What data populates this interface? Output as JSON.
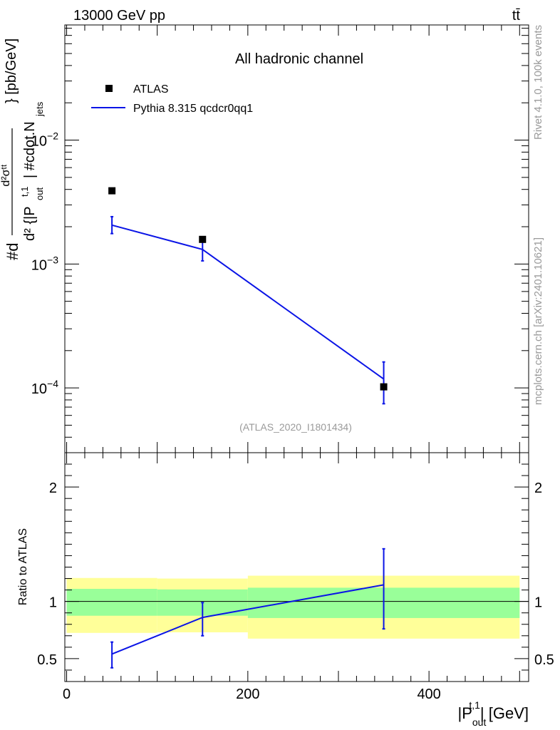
{
  "header": {
    "energy_label": "13000 GeV pp",
    "process_label": "tt̄",
    "channel_title": "All hadronic channel",
    "analysis_id": "(ATLAS_2020_I1801434)"
  },
  "side_labels": {
    "rivet": "Rivet 4.1.0,  100k events",
    "mcplots": "mcplots.cern.ch [arXiv:2401.10621]"
  },
  "legend": {
    "data_label": "ATLAS",
    "mc_label": "Pythia 8.315 qcdcr0qq1"
  },
  "colors": {
    "mc_line": "#0a14e6",
    "band_inner": "#99ff99",
    "band_outer": "#ffff99",
    "data_marker": "#000000"
  },
  "axes": {
    "y_top": {
      "pieces": [
        "#d",
        "d²σᵗᵗ",
        "d² {|P",
        "out",
        "t,1",
        "| #cdot.N",
        "jets",
        "} [pb/GeV]"
      ]
    },
    "y_bottom": {
      "label": "Ratio to ATLAS"
    },
    "x": {
      "pre": "|P",
      "sub": "out",
      "sup": "t,1",
      "post": "| [GeV]"
    }
  },
  "chart_data": [
    {
      "type": "scatter",
      "title": "All hadronic channel",
      "xlabel": "|P_out^{t,1}| [GeV]",
      "ylabel": "d²σ / d²{|P_out^{t,1}| · N_jets} [pb/GeV]",
      "yscale": "log",
      "xlim": [
        -2,
        510
      ],
      "ylim": [
        3e-05,
        0.085
      ],
      "y_ticks": [
        {
          "value": 0.0001,
          "base": "10",
          "exp": "−4"
        },
        {
          "value": 0.001,
          "base": "10",
          "exp": "−3"
        },
        {
          "value": 0.01,
          "base": "10",
          "exp": "−2"
        }
      ],
      "series": [
        {
          "name": "ATLAS",
          "style": "markers",
          "x": [
            50,
            150,
            350
          ],
          "y": [
            0.0039,
            0.00158,
            0.000102
          ]
        },
        {
          "name": "Pythia 8.315 qcdcr0qq1",
          "style": "line",
          "x": [
            50,
            150,
            350
          ],
          "y": [
            0.00206,
            0.00131,
            0.000118
          ],
          "err_low": [
            0.00176,
            0.00106,
            7.45e-05
          ],
          "err_high": [
            0.00241,
            0.00155,
            0.000162
          ]
        }
      ]
    },
    {
      "type": "line",
      "title": "",
      "xlabel": "|P_out^{t,1}| [GeV]",
      "ylabel": "Ratio to ATLAS",
      "xlim": [
        -2,
        510
      ],
      "ylim": [
        0.3,
        2.3
      ],
      "y_ticks": [
        0.5,
        1,
        2
      ],
      "x_ticks": [
        0,
        200,
        400
      ],
      "bands": [
        {
          "x_low": 0,
          "x_high": 100,
          "inner": [
            0.875,
            1.11
          ],
          "outer": [
            0.725,
            1.205
          ]
        },
        {
          "x_low": 100,
          "x_high": 200,
          "inner": [
            0.875,
            1.105
          ],
          "outer": [
            0.73,
            1.2
          ]
        },
        {
          "x_low": 200,
          "x_high": 500,
          "inner": [
            0.855,
            1.12
          ],
          "outer": [
            0.675,
            1.225
          ]
        }
      ],
      "series": [
        {
          "name": "Pythia 8.315 qcdcr0qq1",
          "x": [
            50,
            150,
            350
          ],
          "y": [
            0.54,
            0.86,
            1.145
          ],
          "err_low": [
            0.42,
            0.7,
            0.76
          ],
          "err_high": [
            0.645,
            0.99,
            1.46
          ]
        }
      ]
    }
  ]
}
